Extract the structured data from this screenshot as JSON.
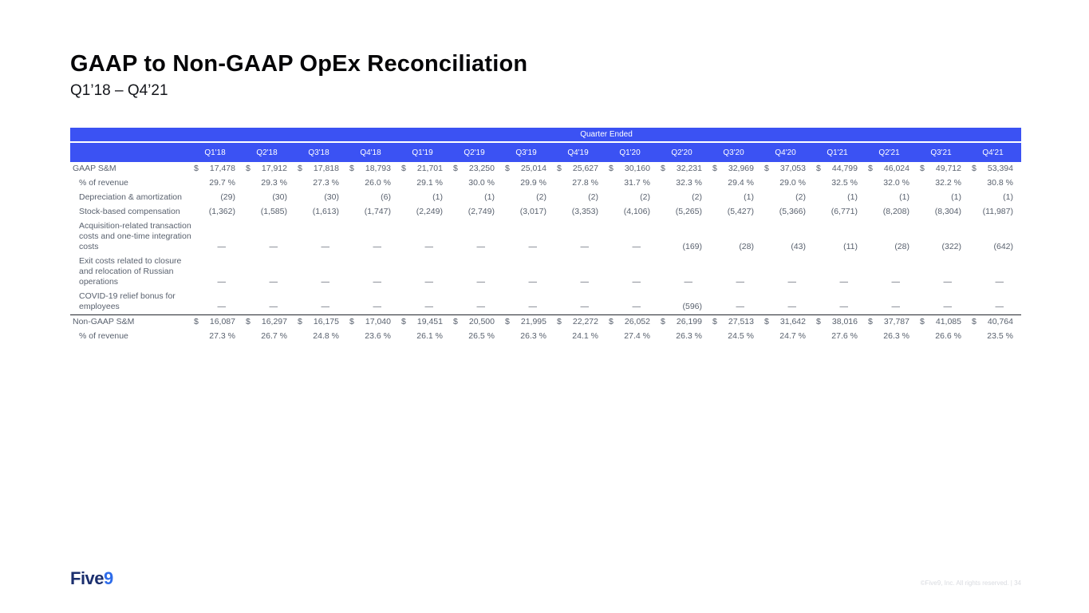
{
  "slide": {
    "title": "GAAP to Non-GAAP OpEx Reconciliation",
    "subtitle": "Q1’18 – Q4’21",
    "logo": {
      "five": "Five",
      "nine": "9"
    },
    "copyright": "©Five9, Inc. All rights reserved. | 34",
    "accent_color": "#3b52f3",
    "text_color": "#59616e"
  },
  "table": {
    "banner": "Quarter Ended",
    "columns": [
      "Q1'18",
      "Q2'18",
      "Q3'18",
      "Q4'18",
      "Q1'19",
      "Q2'19",
      "Q3'19",
      "Q4'19",
      "Q1'20",
      "Q2'20",
      "Q3'20",
      "Q4'20",
      "Q1'21",
      "Q2'21",
      "Q3'21",
      "Q4'21"
    ],
    "rows": [
      {
        "label": "GAAP S&M",
        "indent": false,
        "prefix": "$",
        "suffix": "",
        "rule": false,
        "values": [
          "17,478",
          "17,912",
          "17,818",
          "18,793",
          "21,701",
          "23,250",
          "25,014",
          "25,627",
          "30,160",
          "32,231",
          "32,969",
          "37,053",
          "44,799",
          "46,024",
          "49,712",
          "53,394"
        ]
      },
      {
        "label": "% of revenue",
        "indent": true,
        "prefix": "",
        "suffix": "%",
        "rule": false,
        "values": [
          "29.7",
          "29.3",
          "27.3",
          "26.0",
          "29.1",
          "30.0",
          "29.9",
          "27.8",
          "31.7",
          "32.3",
          "29.4",
          "29.0",
          "32.5",
          "32.0",
          "32.2",
          "30.8"
        ]
      },
      {
        "label": "Depreciation & amortization",
        "indent": true,
        "prefix": "",
        "suffix": "",
        "rule": false,
        "values": [
          "(29)",
          "(30)",
          "(30)",
          "(6)",
          "(1)",
          "(1)",
          "(2)",
          "(2)",
          "(2)",
          "(2)",
          "(1)",
          "(2)",
          "(1)",
          "(1)",
          "(1)",
          "(1)"
        ]
      },
      {
        "label": "Stock-based compensation",
        "indent": true,
        "prefix": "",
        "suffix": "",
        "rule": false,
        "values": [
          "(1,362)",
          "(1,585)",
          "(1,613)",
          "(1,747)",
          "(2,249)",
          "(2,749)",
          "(3,017)",
          "(3,353)",
          "(4,106)",
          "(5,265)",
          "(5,427)",
          "(5,366)",
          "(6,771)",
          "(8,208)",
          "(8,304)",
          "(11,987)"
        ]
      },
      {
        "label": "Acquisition-related transaction costs and one-time integration costs",
        "indent": true,
        "prefix": "",
        "suffix": "",
        "rule": false,
        "values": [
          "—",
          "—",
          "—",
          "—",
          "—",
          "—",
          "—",
          "—",
          "—",
          "(169)",
          "(28)",
          "(43)",
          "(11)",
          "(28)",
          "(322)",
          "(642)"
        ]
      },
      {
        "label": "Exit costs related to closure and relocation of Russian operations",
        "indent": true,
        "prefix": "",
        "suffix": "",
        "rule": false,
        "values": [
          "—",
          "—",
          "—",
          "—",
          "—",
          "—",
          "—",
          "—",
          "—",
          "—",
          "—",
          "—",
          "—",
          "—",
          "—",
          "—"
        ]
      },
      {
        "label": "COVID-19 relief bonus for employees",
        "indent": true,
        "prefix": "",
        "suffix": "",
        "rule": false,
        "values": [
          "—",
          "—",
          "—",
          "—",
          "—",
          "—",
          "—",
          "—",
          "—",
          "(596)",
          "—",
          "—",
          "—",
          "—",
          "—",
          "—"
        ]
      },
      {
        "label": "Non-GAAP S&M",
        "indent": false,
        "prefix": "$",
        "suffix": "",
        "rule": true,
        "values": [
          "16,087",
          "16,297",
          "16,175",
          "17,040",
          "19,451",
          "20,500",
          "21,995",
          "22,272",
          "26,052",
          "26,199",
          "27,513",
          "31,642",
          "38,016",
          "37,787",
          "41,085",
          "40,764"
        ]
      },
      {
        "label": "% of revenue",
        "indent": true,
        "prefix": "",
        "suffix": "%",
        "rule": false,
        "values": [
          "27.3",
          "26.7",
          "24.8",
          "23.6",
          "26.1",
          "26.5",
          "26.3",
          "24.1",
          "27.4",
          "26.3",
          "24.5",
          "24.7",
          "27.6",
          "26.3",
          "26.6",
          "23.5"
        ]
      }
    ]
  }
}
